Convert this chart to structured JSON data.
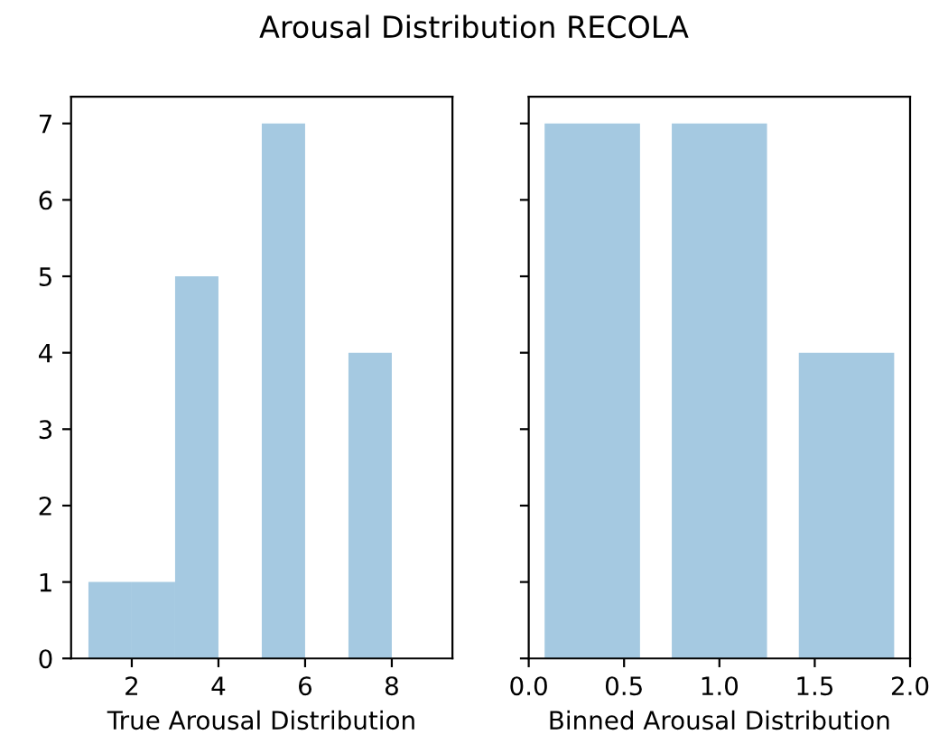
{
  "chart_data": [
    {
      "type": "histogram",
      "title": "Arousal Distribution RECOLA",
      "xlabel": "True Arousal Distribution",
      "bins": [
        1,
        2,
        3,
        4,
        5,
        6,
        7,
        8,
        9
      ],
      "values": [
        1,
        1,
        5,
        0,
        7,
        0,
        4,
        0
      ],
      "color": "#a5c9e1",
      "xlim": [
        0.6,
        9.4
      ],
      "xticks": [
        2,
        4,
        6,
        8
      ],
      "ylim": [
        0,
        7.35
      ],
      "yticks": [
        0,
        1,
        2,
        3,
        4,
        5,
        6,
        7
      ],
      "grid": false
    },
    {
      "type": "histogram",
      "xlabel": "Binned Arousal Distribution",
      "bins": [
        0,
        0.667,
        1.333,
        2
      ],
      "values": [
        7,
        7,
        4
      ],
      "color": "#a5c9e1",
      "xlim": [
        0,
        2
      ],
      "xticks": [
        {
          "value": 0,
          "label": "0.0"
        },
        {
          "value": 0.5,
          "label": "0.5"
        },
        {
          "value": 1,
          "label": "1.0"
        },
        {
          "value": 1.5,
          "label": "1.5"
        },
        {
          "value": 2,
          "label": "2.0"
        }
      ],
      "ylim": [
        0,
        7.35
      ],
      "yticks": [
        0,
        1,
        2,
        3,
        4,
        5,
        6,
        7
      ],
      "tick_labels": "x",
      "grid": false
    }
  ]
}
